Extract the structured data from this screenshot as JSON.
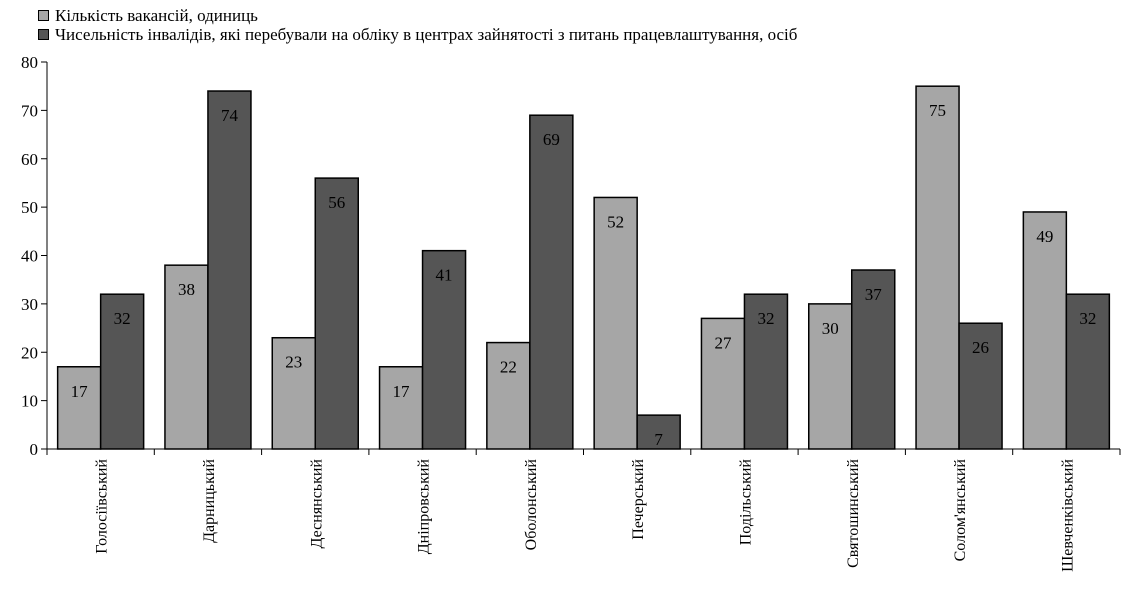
{
  "chart_data": {
    "type": "bar",
    "categories": [
      "Голосіївський",
      "Дарницький",
      "Деснянський",
      "Дніпровський",
      "Оболонський",
      "Печерський",
      "Подільський",
      "Святошинський",
      "Солом'янський",
      "Шевченківський"
    ],
    "series": [
      {
        "name": "Кількість вакансій, одиниць",
        "color": "#a6a6a6",
        "values": [
          17,
          38,
          23,
          17,
          22,
          52,
          27,
          30,
          75,
          49
        ]
      },
      {
        "name": "Чисельність інвалідів, які перебували на обліку в центрах зайнятості з питань працевлаштування, осіб",
        "color": "#555555",
        "values": [
          32,
          74,
          56,
          41,
          69,
          7,
          32,
          37,
          26,
          32
        ]
      }
    ],
    "ylim": [
      0,
      80
    ],
    "yticks": [
      0,
      10,
      20,
      30,
      40,
      50,
      60,
      70,
      80
    ],
    "grid": false,
    "legend_position": "top-left"
  }
}
